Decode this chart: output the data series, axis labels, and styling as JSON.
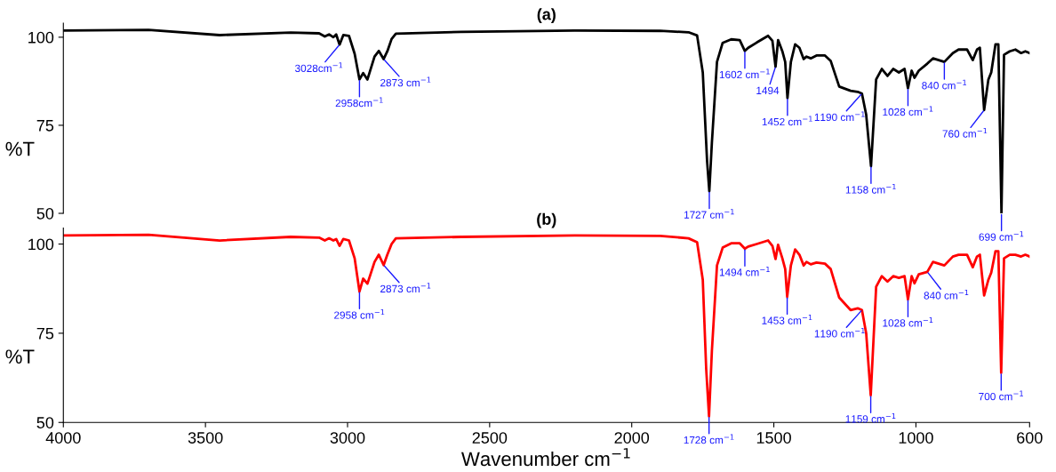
{
  "chart_data": [
    {
      "type": "line",
      "title": "(a)",
      "ylabel": "%T",
      "xlim": [
        4000,
        600
      ],
      "ylim": [
        50,
        104
      ],
      "yticks": [
        50,
        75,
        100
      ],
      "tick_labels": "y",
      "grid": false,
      "series": [
        {
          "color": "#000000",
          "x": [
            4000,
            3700,
            3450,
            3200,
            3100,
            3080,
            3065,
            3050,
            3040,
            3028,
            3015,
            2995,
            2975,
            2958,
            2945,
            2930,
            2905,
            2890,
            2873,
            2860,
            2845,
            2830,
            2600,
            2200,
            1900,
            1800,
            1770,
            1750,
            1735,
            1727,
            1718,
            1700,
            1680,
            1650,
            1620,
            1602,
            1590,
            1560,
            1520,
            1505,
            1494,
            1485,
            1470,
            1460,
            1452,
            1440,
            1425,
            1410,
            1395,
            1385,
            1370,
            1350,
            1320,
            1300,
            1270,
            1230,
            1205,
            1190,
            1175,
            1158,
            1140,
            1120,
            1100,
            1080,
            1060,
            1040,
            1028,
            1015,
            1005,
            990,
            960,
            940,
            900,
            870,
            850,
            820,
            800,
            785,
            775,
            760,
            745,
            735,
            720,
            710,
            699,
            690,
            670,
            650,
            630,
            615,
            600
          ],
          "values": [
            101.9,
            102.1,
            100.6,
            101.3,
            101.1,
            100.2,
            100.8,
            100.0,
            100.8,
            97.9,
            100.6,
            100.4,
            95.3,
            88.0,
            89.8,
            88.0,
            94.5,
            96.1,
            93.8,
            96.0,
            99.5,
            101.0,
            101.5,
            101.9,
            101.8,
            101.4,
            100.5,
            90.0,
            65,
            56.3,
            70,
            93,
            98.4,
            99.4,
            99.2,
            96.1,
            97,
            98.5,
            100.4,
            99,
            91.6,
            99.2,
            96,
            93,
            82.7,
            93,
            98,
            97,
            93.8,
            94.5,
            94,
            94.8,
            94.8,
            93.3,
            86,
            84.8,
            84.5,
            84.0,
            78,
            63.4,
            88,
            91,
            89,
            91,
            90,
            91,
            85.5,
            90.5,
            88.5,
            90.5,
            92.5,
            94,
            93,
            95.5,
            96.5,
            96.5,
            93.5,
            96.5,
            97,
            79.3,
            88,
            90,
            98,
            98,
            50,
            95,
            96,
            96.5,
            95.5,
            96,
            95.5
          ]
        }
      ],
      "annotations": [
        {
          "text": "3028cm$^{−1}$",
          "x": 3028,
          "y": 97.9
        },
        {
          "text": "2958cm$^{−1}$",
          "x": 2958,
          "y": 88.0
        },
        {
          "text": "2873 cm$^{−1}$",
          "x": 2873,
          "y": 93.8
        },
        {
          "text": "1727 cm$^{−1}$",
          "x": 1727,
          "y": 56.3
        },
        {
          "text": "1602 cm$^{−1}$",
          "x": 1602,
          "y": 96.1
        },
        {
          "text": "1494",
          "x": 1494,
          "y": 91.6
        },
        {
          "text": "1452 cm$^{−1}$",
          "x": 1452,
          "y": 82.7
        },
        {
          "text": "1190 cm$^{−1}$",
          "x": 1190,
          "y": 84.0
        },
        {
          "text": "1158 cm$^{−1}$",
          "x": 1158,
          "y": 63.4
        },
        {
          "text": "1028 cm$^{−1}$",
          "x": 1028,
          "y": 85.5
        },
        {
          "text": "840 cm$^{−1}$",
          "x": 900,
          "y": 93
        },
        {
          "text": "760 cm$^{−1}$",
          "x": 760,
          "y": 79.3
        },
        {
          "text": "699 cm$^{−1}$",
          "x": 699,
          "y": 50
        }
      ]
    },
    {
      "type": "line",
      "title": "(b)",
      "ylabel": "%T",
      "xlabel": "Wavenumber cm$^{−1}$",
      "xlim": [
        4000,
        600
      ],
      "ylim": [
        50,
        104.5
      ],
      "xticks": [
        4000,
        3500,
        3000,
        2500,
        2000,
        1500,
        1000,
        600
      ],
      "yticks": [
        50,
        75,
        100
      ],
      "grid": false,
      "series": [
        {
          "color": "#ff0000",
          "x": [
            4000,
            3700,
            3450,
            3200,
            3100,
            3080,
            3065,
            3050,
            3040,
            3028,
            3015,
            2995,
            2975,
            2958,
            2945,
            2930,
            2905,
            2890,
            2873,
            2860,
            2845,
            2830,
            2600,
            2200,
            1900,
            1800,
            1770,
            1750,
            1738,
            1728,
            1718,
            1700,
            1680,
            1650,
            1620,
            1602,
            1590,
            1560,
            1520,
            1505,
            1494,
            1485,
            1470,
            1460,
            1453,
            1440,
            1425,
            1410,
            1395,
            1385,
            1370,
            1350,
            1320,
            1300,
            1270,
            1230,
            1205,
            1190,
            1175,
            1159,
            1140,
            1120,
            1100,
            1080,
            1060,
            1040,
            1028,
            1015,
            1005,
            990,
            960,
            940,
            900,
            870,
            850,
            820,
            800,
            785,
            775,
            760,
            745,
            735,
            720,
            710,
            700,
            690,
            670,
            650,
            630,
            615,
            600
          ],
          "values": [
            102.4,
            102.6,
            101.0,
            102.0,
            101.8,
            101.0,
            101.6,
            101.0,
            101.4,
            99.5,
            101.4,
            101.0,
            96,
            86.7,
            90.3,
            88.9,
            95,
            97,
            94.1,
            97,
            100,
            101.6,
            102,
            102.4,
            102.3,
            101.6,
            100.5,
            90,
            65,
            51.7,
            70,
            94,
            99,
            100.2,
            100.2,
            98.7,
            99.3,
            100,
            101,
            99.5,
            95.8,
            99.8,
            96,
            93,
            85.2,
            94,
            98.5,
            97,
            94,
            95,
            94.3,
            94.8,
            94.5,
            93,
            85,
            81.5,
            82,
            81.5,
            75,
            57.6,
            88,
            91,
            89.5,
            91,
            90.5,
            91,
            84.5,
            91,
            89,
            91.5,
            92.2,
            95,
            94,
            96.5,
            97,
            97,
            93.5,
            96.5,
            97,
            85.6,
            90,
            92,
            98,
            98,
            63.9,
            96,
            97,
            97,
            96.5,
            97,
            96.5
          ]
        }
      ],
      "annotations": [
        {
          "text": "2958 cm$^{−1}$",
          "x": 2958,
          "y": 86.7
        },
        {
          "text": "2873 cm$^{−1}$",
          "x": 2873,
          "y": 94.1
        },
        {
          "text": "1728 cm$^{−1}$",
          "x": 1728,
          "y": 51.7
        },
        {
          "text": "1494 cm$^{−1}$",
          "x": 1602,
          "y": 98.7
        },
        {
          "text": "1453 cm$^{−1}$",
          "x": 1453,
          "y": 85.2
        },
        {
          "text": "1190 cm$^{−1}$",
          "x": 1190,
          "y": 81.5
        },
        {
          "text": "1159 cm$^{−1}$",
          "x": 1159,
          "y": 57.6
        },
        {
          "text": "1028 cm$^{−1}$",
          "x": 1028,
          "y": 84.5
        },
        {
          "text": "840 cm$^{−1}$",
          "x": 960,
          "y": 92.2
        },
        {
          "text": "700 cm$^{−1}$",
          "x": 700,
          "y": 63.9
        }
      ]
    }
  ]
}
